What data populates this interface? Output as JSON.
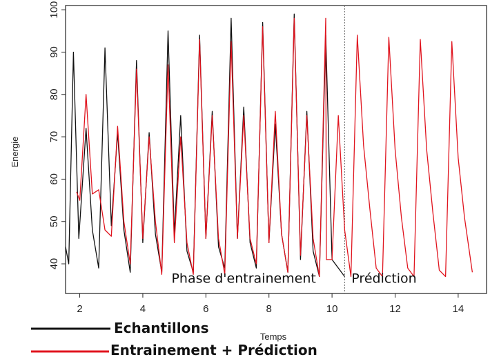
{
  "chart_data": {
    "type": "line",
    "xlabel": "Temps",
    "ylabel": "Energie",
    "xlim": [
      1.55,
      14.9
    ],
    "ylim": [
      33,
      101
    ],
    "xticks": [
      2,
      4,
      6,
      8,
      10,
      12,
      14
    ],
    "yticks": [
      40,
      50,
      60,
      70,
      80,
      90,
      100
    ],
    "split_x": 10.4,
    "annotations": [
      {
        "text": "Phase d'entrainement",
        "x": 7.2,
        "y": 35.5
      },
      {
        "text": "Prédiction",
        "x": 11.65,
        "y": 35.5
      }
    ],
    "series": [
      {
        "name": "Echantillons",
        "color": "#111111",
        "x": [
          1.55,
          1.65,
          1.8,
          1.97,
          2.2,
          2.4,
          2.6,
          2.8,
          3.0,
          3.2,
          3.4,
          3.6,
          3.8,
          4.0,
          4.2,
          4.4,
          4.6,
          4.8,
          5.0,
          5.2,
          5.4,
          5.6,
          5.8,
          6.0,
          6.2,
          6.4,
          6.6,
          6.8,
          7.0,
          7.2,
          7.4,
          7.6,
          7.8,
          8.0,
          8.2,
          8.4,
          8.6,
          8.8,
          9.0,
          9.2,
          9.4,
          9.6,
          9.8,
          10.0,
          10.4
        ],
        "values": [
          44,
          40,
          90,
          46,
          72,
          48,
          39,
          91,
          49,
          71,
          48,
          38,
          88,
          45,
          71,
          47,
          38,
          95,
          47,
          75,
          43,
          38,
          94,
          46,
          76,
          44,
          39,
          98,
          46,
          77,
          45,
          39,
          97,
          45,
          73,
          47,
          38,
          99,
          41,
          76,
          43,
          37,
          94,
          41,
          37
        ]
      },
      {
        "name": "Entrainement + Prédiction",
        "color": "#e0141e",
        "x": [
          1.9,
          2.0,
          2.2,
          2.4,
          2.6,
          2.8,
          3.0,
          3.2,
          3.4,
          3.6,
          3.8,
          4.0,
          4.2,
          4.4,
          4.6,
          4.8,
          5.0,
          5.2,
          5.4,
          5.6,
          5.8,
          6.0,
          6.2,
          6.4,
          6.6,
          6.8,
          7.0,
          7.2,
          7.4,
          7.6,
          7.8,
          8.0,
          8.2,
          8.4,
          8.6,
          8.8,
          9.0,
          9.2,
          9.4,
          9.6,
          9.8,
          9.82,
          10.0,
          10.2,
          10.4,
          10.6,
          10.8,
          11.0,
          11.2,
          11.4,
          11.6,
          11.8,
          12.0,
          12.2,
          12.4,
          12.6,
          12.8,
          13.0,
          13.2,
          13.4,
          13.6,
          13.8,
          14.0,
          14.2,
          14.45
        ],
        "values": [
          57,
          55,
          80,
          56.5,
          57.5,
          48,
          46.5,
          72.5,
          50,
          40,
          86,
          46,
          70,
          50,
          37.5,
          87,
          45,
          70,
          45,
          37.5,
          93,
          46,
          75,
          46,
          37.5,
          92.5,
          46,
          75,
          46,
          40,
          96,
          45,
          76,
          47,
          38,
          98,
          42,
          75,
          46,
          37,
          98,
          41,
          41,
          75,
          48,
          37,
          94,
          68,
          53,
          39,
          37,
          93.5,
          67,
          51,
          39,
          37,
          93,
          67,
          52,
          38.5,
          37,
          92.5,
          65,
          51,
          38
        ]
      }
    ]
  },
  "legend": {
    "items": [
      {
        "label": "Echantillons",
        "color": "#111111"
      },
      {
        "label": "Entrainement + Prédiction",
        "color": "#e0141e"
      }
    ]
  }
}
